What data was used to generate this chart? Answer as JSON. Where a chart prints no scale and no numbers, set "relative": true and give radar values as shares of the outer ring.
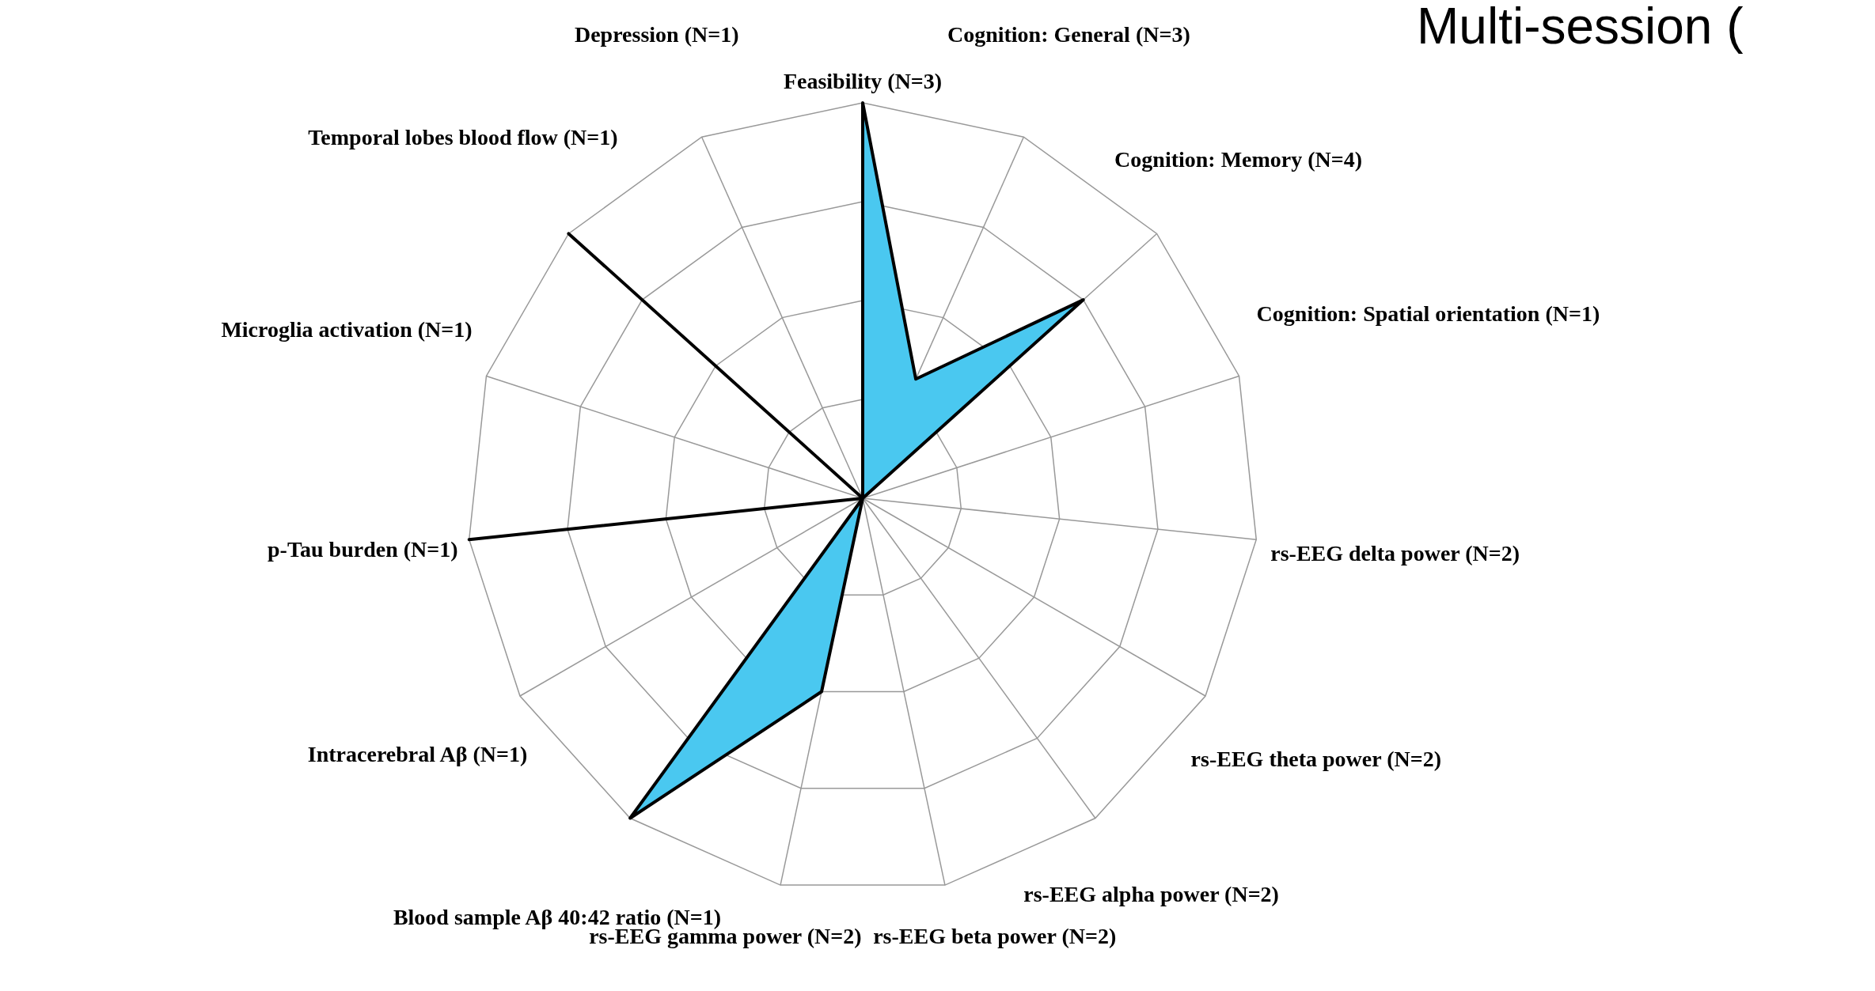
{
  "chart_data": {
    "type": "radar",
    "title": "Multi-session (",
    "relative": true,
    "grid": true,
    "categories": [
      "Feasibility (N=3)",
      "Cognition: General (N=3)",
      "Cognition: Memory (N=4)",
      "Cognition: Spatial orientation (N=1)",
      "rs-EEG delta power (N=2)",
      "rs-EEG theta power (N=2)",
      "rs-EEG alpha power (N=2)",
      "rs-EEG beta power (N=2)",
      "rs-EEG gamma power (N=2)",
      "Blood sample Aβ 40:42 ratio (N=1)",
      "Intracerebral Aβ (N=1)",
      "p-Tau burden (N=1)",
      "Microglia activation (N=1)",
      "Temporal lobes blood flow (N=1)",
      "Depression (N=1)"
    ],
    "series": [
      {
        "color": "#4ac8f0",
        "values": [
          1,
          0.33,
          0.75,
          0,
          0,
          0,
          0,
          0,
          0.5,
          1,
          0,
          1,
          0,
          1,
          0
        ]
      }
    ]
  }
}
